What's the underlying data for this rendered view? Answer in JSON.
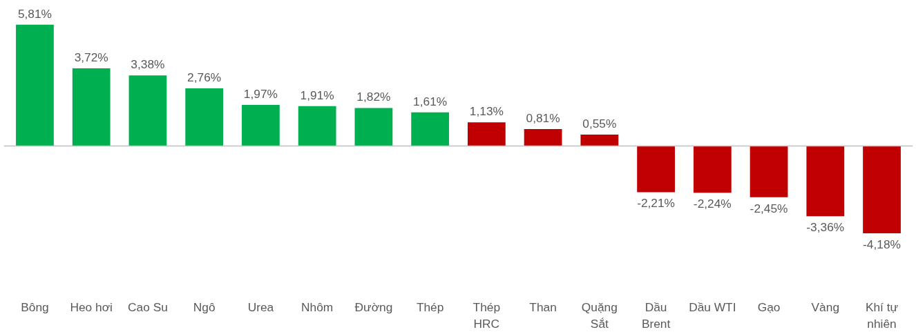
{
  "chart_data": {
    "type": "bar",
    "categories": [
      "Bông",
      "Heo hơi",
      "Cao Su",
      "Ngô",
      "Urea",
      "Nhôm",
      "Đường",
      "Thép",
      "Thép HRC",
      "Than",
      "Quặng Sắt",
      "Dầu Brent",
      "Dầu WTI",
      "Gạo",
      "Vàng",
      "Khí tự nhiên"
    ],
    "values": [
      5.81,
      3.72,
      3.38,
      2.76,
      1.97,
      1.91,
      1.82,
      1.61,
      1.13,
      0.81,
      0.55,
      -2.21,
      -2.24,
      -2.45,
      -3.36,
      -4.18
    ],
    "colors": [
      "#00b050",
      "#00b050",
      "#00b050",
      "#00b050",
      "#00b050",
      "#00b050",
      "#00b050",
      "#00b050",
      "#c00000",
      "#c00000",
      "#c00000",
      "#c00000",
      "#c00000",
      "#c00000",
      "#c00000",
      "#c00000"
    ],
    "value_labels": [
      "5,81%",
      "3,72%",
      "3,38%",
      "2,76%",
      "1,97%",
      "1,91%",
      "1,82%",
      "1,61%",
      "1,13%",
      "0,81%",
      "0,55%",
      "-2,21%",
      "-2,24%",
      "-2,45%",
      "-3,36%",
      "-4,18%"
    ],
    "grid": false
  }
}
